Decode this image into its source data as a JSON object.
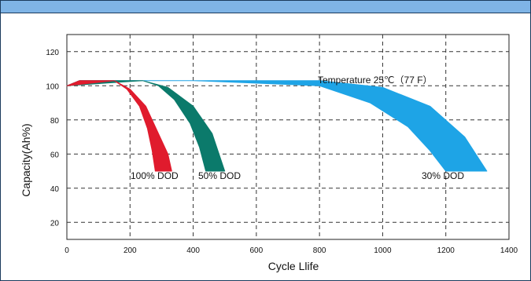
{
  "chart_data": {
    "type": "area",
    "title": "",
    "xlabel": "Cycle Llife",
    "ylabel": "Capacity(Ah%)",
    "xlim": [
      0,
      1400
    ],
    "ylim": [
      10,
      130
    ],
    "x_ticks": [
      "0",
      "200",
      "400",
      "600",
      "800",
      "1000",
      "1200",
      "1400"
    ],
    "y_ticks": [
      "20",
      "40",
      "60",
      "80",
      "100",
      "120"
    ],
    "grid": true,
    "annotation": "Temperature 25℃（77 F）",
    "series": [
      {
        "name": "100% DOD",
        "color": "#e01b2d",
        "upper": [
          [
            0,
            100
          ],
          [
            40,
            103
          ],
          [
            150,
            103
          ],
          [
            200,
            98
          ],
          [
            250,
            88
          ],
          [
            290,
            72
          ],
          [
            320,
            60
          ],
          [
            332,
            50
          ]
        ],
        "lower": [
          [
            280,
            50
          ],
          [
            270,
            62
          ],
          [
            255,
            75
          ],
          [
            230,
            88
          ],
          [
            190,
            98
          ],
          [
            150,
            103
          ]
        ]
      },
      {
        "name": "50% DOD",
        "color": "#0b7a6b",
        "upper": [
          [
            0,
            100
          ],
          [
            40,
            103
          ],
          [
            240,
            103
          ],
          [
            320,
            99
          ],
          [
            400,
            88
          ],
          [
            460,
            72
          ],
          [
            500,
            50
          ]
        ],
        "lower": [
          [
            440,
            50
          ],
          [
            420,
            64
          ],
          [
            390,
            78
          ],
          [
            340,
            92
          ],
          [
            290,
            100
          ],
          [
            240,
            103
          ]
        ]
      },
      {
        "name": "30% DOD",
        "color": "#1ea4e6",
        "upper": [
          [
            0,
            100
          ],
          [
            40,
            103
          ],
          [
            800,
            103
          ],
          [
            1000,
            99
          ],
          [
            1150,
            88
          ],
          [
            1260,
            70
          ],
          [
            1330,
            50
          ]
        ],
        "lower": [
          [
            1200,
            50
          ],
          [
            1150,
            62
          ],
          [
            1080,
            76
          ],
          [
            960,
            90
          ],
          [
            800,
            100
          ],
          [
            400,
            103
          ],
          [
            40,
            103
          ]
        ]
      }
    ],
    "labels": [
      "100% DOD",
      "50% DOD",
      "30% DOD"
    ]
  }
}
